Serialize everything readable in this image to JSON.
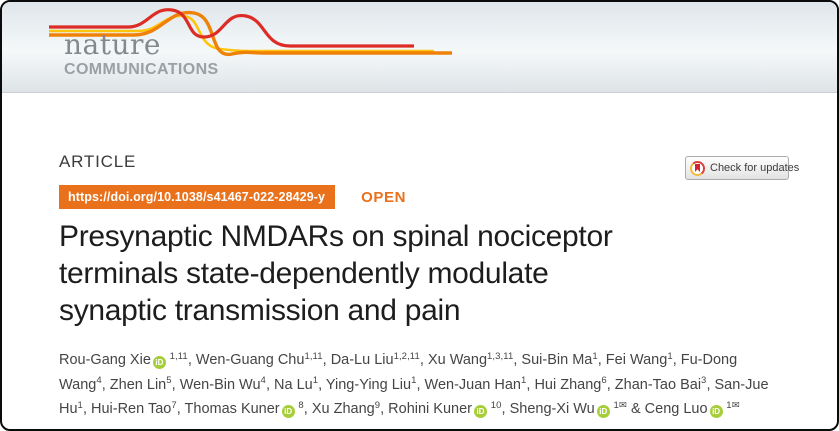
{
  "masthead": {
    "brand_top": "nature",
    "brand_bottom": "COMMUNICATIONS"
  },
  "article": {
    "kicker": "ARTICLE",
    "doi": "https://doi.org/10.1038/s41467-022-28429-y",
    "open_label": "OPEN",
    "title_lines": [
      "Presynaptic NMDARs on spinal nociceptor",
      "terminals state-dependently modulate",
      "synaptic transmission and pain"
    ]
  },
  "check_updates": {
    "label": "Check for updates",
    "icon": "crossmark-icon"
  },
  "authors": {
    "separator": ", ",
    "last_separator": " & ",
    "orcid_label": "iD",
    "mail_glyph": "✉",
    "list": [
      {
        "name": "Rou-Gang Xie",
        "orcid": true,
        "sups": "1,11",
        "mail": false
      },
      {
        "name": "Wen-Guang Chu",
        "orcid": false,
        "sups": "1,11",
        "mail": false
      },
      {
        "name": "Da-Lu Liu",
        "orcid": false,
        "sups": "1,2,11",
        "mail": false
      },
      {
        "name": "Xu Wang",
        "orcid": false,
        "sups": "1,3,11",
        "mail": false
      },
      {
        "name": "Sui-Bin Ma",
        "orcid": false,
        "sups": "1",
        "mail": false
      },
      {
        "name": "Fei Wang",
        "orcid": false,
        "sups": "1",
        "mail": false
      },
      {
        "name": "Fu-Dong Wang",
        "orcid": false,
        "sups": "4",
        "mail": false
      },
      {
        "name": "Zhen Lin",
        "orcid": false,
        "sups": "5",
        "mail": false
      },
      {
        "name": "Wen-Bin Wu",
        "orcid": false,
        "sups": "4",
        "mail": false
      },
      {
        "name": "Na Lu",
        "orcid": false,
        "sups": "1",
        "mail": false
      },
      {
        "name": "Ying-Ying Liu",
        "orcid": false,
        "sups": "1",
        "mail": false
      },
      {
        "name": "Wen-Juan Han",
        "orcid": false,
        "sups": "1",
        "mail": false
      },
      {
        "name": "Hui Zhang",
        "orcid": false,
        "sups": "6",
        "mail": false
      },
      {
        "name": "Zhan-Tao Bai",
        "orcid": false,
        "sups": "3",
        "mail": false
      },
      {
        "name": "San-Jue Hu",
        "orcid": false,
        "sups": "1",
        "mail": false
      },
      {
        "name": "Hui-Ren Tao",
        "orcid": false,
        "sups": "7",
        "mail": false
      },
      {
        "name": "Thomas Kuner",
        "orcid": true,
        "sups": "8",
        "mail": false
      },
      {
        "name": "Xu Zhang",
        "orcid": false,
        "sups": "9",
        "mail": false
      },
      {
        "name": "Rohini Kuner",
        "orcid": true,
        "sups": "10",
        "mail": false
      },
      {
        "name": "Sheng-Xi Wu",
        "orcid": true,
        "sups": "1",
        "mail": true
      },
      {
        "name": "Ceng Luo",
        "orcid": true,
        "sups": "1",
        "mail": true
      }
    ]
  },
  "colors": {
    "accent_orange": "#e9711c",
    "orcid_green": "#a6ce39",
    "brand_red": "#dd2c26",
    "brand_orange": "#ef8109",
    "brand_yellow": "#ffc40c",
    "title_text": "#1d1d1d",
    "author_text": "#454545"
  }
}
